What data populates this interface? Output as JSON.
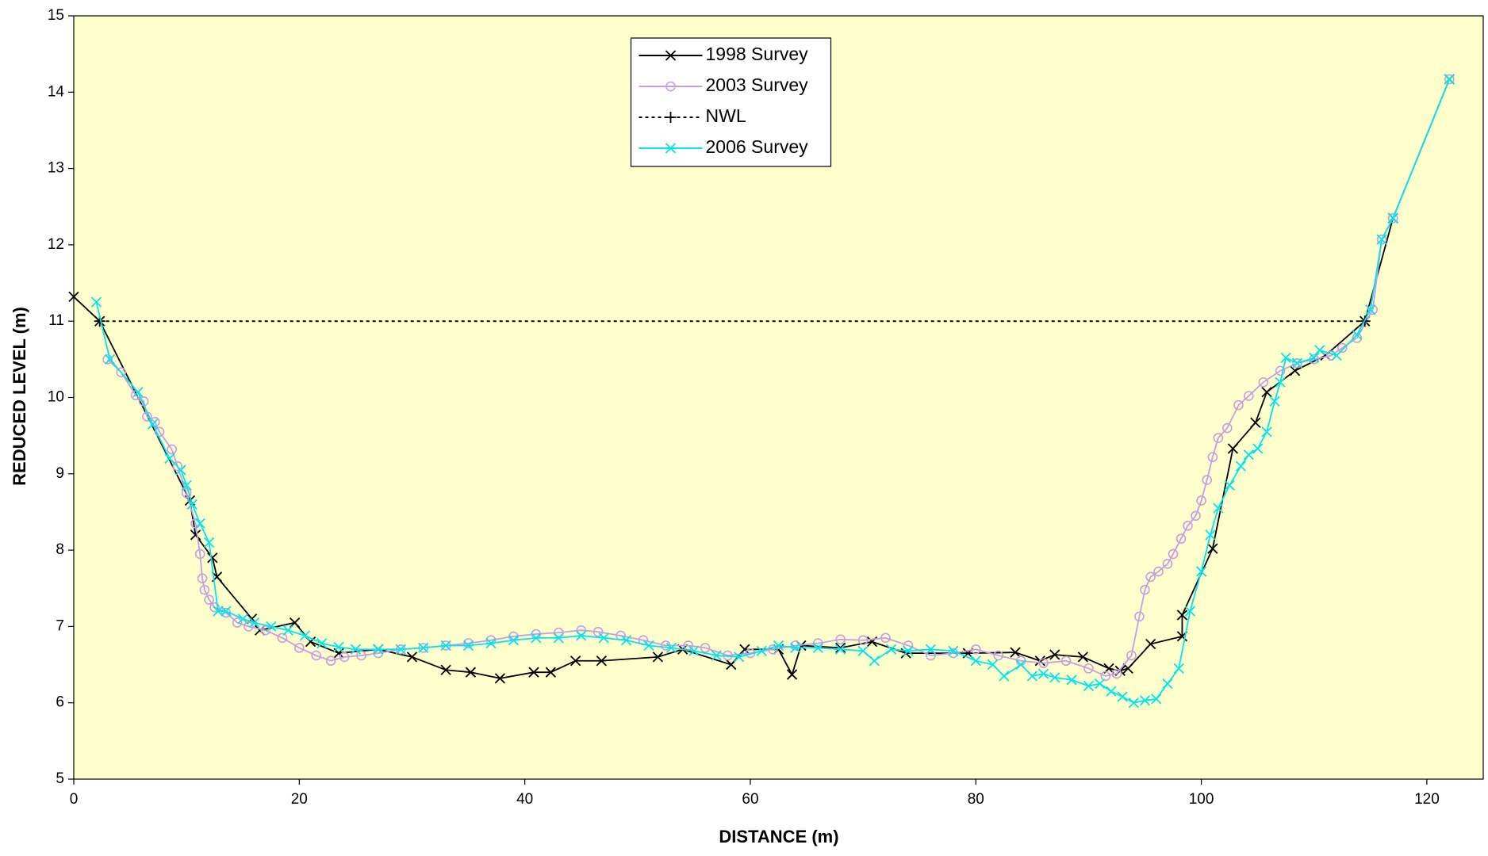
{
  "chart_data": {
    "type": "line",
    "xlabel": "DISTANCE (m)",
    "ylabel": "REDUCED LEVEL (m)",
    "xlim": [
      0,
      125
    ],
    "ylim": [
      5,
      15
    ],
    "xticks": [
      0,
      20,
      40,
      60,
      80,
      100,
      120
    ],
    "yticks": [
      5,
      6,
      7,
      8,
      9,
      10,
      11,
      12,
      13,
      14,
      15
    ],
    "background": "#ffffcc",
    "legend": "top",
    "series": [
      {
        "name": "1998 Survey",
        "color": "#000000",
        "marker": "x",
        "dash": false,
        "x": [
          0,
          2.3,
          10.3,
          10.8,
          12.3,
          12.7,
          15.8,
          16.5,
          19.6,
          21,
          23.5,
          27,
          30,
          33,
          35.2,
          37.8,
          40.8,
          42.3,
          44.5,
          46.8,
          51.8,
          54,
          58.3,
          59.5,
          62.5,
          63.7,
          64.5,
          68,
          70.8,
          73.8,
          79.3,
          83.5,
          85.7,
          87,
          89.5,
          91.8,
          92.8,
          93.5,
          95.5,
          98.3,
          98.3,
          101,
          102.8,
          104.8,
          105.8,
          108.3,
          111,
          114.5,
          117,
          122
        ],
        "values": [
          11.32,
          11.0,
          8.65,
          8.2,
          7.9,
          7.65,
          7.1,
          6.95,
          7.05,
          6.8,
          6.65,
          6.7,
          6.6,
          6.43,
          6.4,
          6.32,
          6.4,
          6.4,
          6.55,
          6.55,
          6.6,
          6.7,
          6.5,
          6.7,
          6.7,
          6.37,
          6.75,
          6.72,
          6.8,
          6.65,
          6.65,
          6.66,
          6.55,
          6.63,
          6.6,
          6.45,
          6.42,
          6.45,
          6.77,
          6.87,
          7.15,
          8.02,
          9.33,
          9.67,
          10.07,
          10.35,
          10.55,
          11.0,
          12.35,
          14.17
        ]
      },
      {
        "name": "2003 Survey",
        "color": "#c89be6",
        "marker": "circle",
        "dash": false,
        "x": [
          3,
          4.2,
          5.5,
          6.2,
          6.5,
          7.2,
          7.6,
          8.7,
          9.2,
          10,
          10.8,
          11.2,
          11.4,
          11.6,
          12,
          12.5,
          13.5,
          14.5,
          15.5,
          17,
          18.5,
          20,
          21.5,
          22.8,
          24,
          25.5,
          27,
          29,
          31,
          33,
          35,
          37,
          39,
          41,
          43,
          45,
          46.5,
          48.5,
          50.5,
          52.5,
          54.5,
          56,
          58,
          60,
          62,
          64,
          66,
          68,
          70,
          72,
          74,
          76,
          78,
          80,
          82,
          84,
          86,
          88,
          90,
          91.5,
          92.5,
          93.8,
          94.5,
          95,
          95.5,
          96.2,
          97,
          97.5,
          98.2,
          98.8,
          99.5,
          100,
          100.5,
          101,
          101.5,
          102.3,
          103.3,
          104.2,
          105.5,
          107,
          108.5,
          110,
          111.5,
          112.5,
          113.8,
          115.2,
          116,
          117,
          122
        ],
        "values": [
          10.5,
          10.33,
          10.03,
          9.95,
          9.75,
          9.68,
          9.55,
          9.32,
          9.1,
          8.75,
          8.35,
          7.95,
          7.63,
          7.48,
          7.35,
          7.25,
          7.18,
          7.05,
          7.0,
          6.95,
          6.85,
          6.72,
          6.62,
          6.55,
          6.6,
          6.62,
          6.65,
          6.7,
          6.72,
          6.75,
          6.78,
          6.82,
          6.87,
          6.9,
          6.92,
          6.95,
          6.93,
          6.88,
          6.82,
          6.75,
          6.75,
          6.72,
          6.62,
          6.65,
          6.7,
          6.75,
          6.78,
          6.83,
          6.82,
          6.85,
          6.75,
          6.62,
          6.65,
          6.7,
          6.62,
          6.55,
          6.52,
          6.55,
          6.45,
          6.35,
          6.38,
          6.62,
          7.13,
          7.48,
          7.65,
          7.72,
          7.82,
          7.95,
          8.15,
          8.32,
          8.45,
          8.65,
          8.92,
          9.22,
          9.47,
          9.6,
          9.9,
          10.02,
          10.2,
          10.35,
          10.45,
          10.5,
          10.55,
          10.65,
          10.78,
          11.15,
          12.07,
          12.35,
          14.17
        ]
      },
      {
        "name": "NWL",
        "color": "#000000",
        "marker": "plus",
        "dash": true,
        "x": [
          2.3,
          114.5
        ],
        "values": [
          11.0,
          11.0
        ]
      },
      {
        "name": "2006 Survey",
        "color": "#00e5ee",
        "marker": "x",
        "dash": false,
        "x": [
          2,
          3.2,
          5.7,
          7,
          8.5,
          9.5,
          10,
          10.5,
          11.2,
          12,
          12.8,
          13.5,
          15,
          16,
          17.5,
          19,
          20.5,
          22,
          23.5,
          25,
          27,
          29,
          31,
          33,
          35,
          37,
          39,
          41,
          43,
          45,
          47,
          49,
          51,
          53,
          55,
          57,
          59,
          61,
          62.5,
          64,
          66,
          68,
          70,
          71,
          72.5,
          74,
          76,
          78,
          80,
          81.5,
          82.5,
          84,
          85,
          86,
          87,
          88.5,
          90,
          91,
          92,
          93,
          94,
          95,
          96,
          97,
          98,
          99,
          100,
          100.8,
          101.5,
          102.5,
          103.5,
          104.2,
          105,
          105.8,
          106.5,
          107,
          107.5,
          108.5,
          110,
          110.5,
          112,
          113.8,
          115,
          116,
          117,
          122
        ],
        "values": [
          11.25,
          10.5,
          10.07,
          9.65,
          9.2,
          9.05,
          8.85,
          8.6,
          8.35,
          8.1,
          7.2,
          7.2,
          7.1,
          7.05,
          7.0,
          6.95,
          6.88,
          6.78,
          6.73,
          6.7,
          6.7,
          6.7,
          6.72,
          6.75,
          6.75,
          6.78,
          6.82,
          6.85,
          6.85,
          6.88,
          6.85,
          6.82,
          6.75,
          6.72,
          6.68,
          6.62,
          6.6,
          6.68,
          6.75,
          6.72,
          6.72,
          6.7,
          6.68,
          6.55,
          6.7,
          6.68,
          6.7,
          6.68,
          6.55,
          6.5,
          6.35,
          6.5,
          6.35,
          6.38,
          6.33,
          6.3,
          6.22,
          6.25,
          6.15,
          6.08,
          6.0,
          6.03,
          6.05,
          6.25,
          6.45,
          7.2,
          7.72,
          8.2,
          8.55,
          8.85,
          9.1,
          9.25,
          9.33,
          9.55,
          9.95,
          10.2,
          10.52,
          10.45,
          10.52,
          10.62,
          10.55,
          10.82,
          11.15,
          12.07,
          12.35,
          14.17
        ]
      }
    ]
  }
}
